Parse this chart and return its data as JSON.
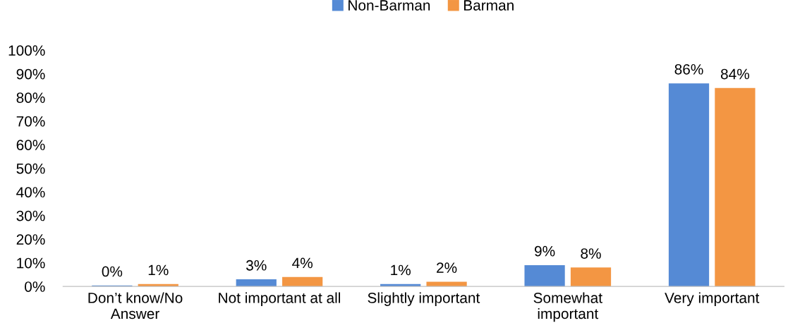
{
  "chart_data": {
    "type": "bar",
    "categories": [
      "Don’t know/No\nAnswer",
      "Not important at all",
      "Slightly important",
      "Somewhat\nimportant",
      "Very important"
    ],
    "series": [
      {
        "name": "Non-Barman",
        "color": "#558ad5",
        "values": [
          0.4,
          3,
          1,
          9,
          86
        ],
        "value_labels": [
          "0%",
          "3%",
          "1%",
          "9%",
          "86%"
        ]
      },
      {
        "name": "Barman",
        "color": "#f39643",
        "values": [
          1,
          4,
          2,
          8,
          84
        ],
        "value_labels": [
          "1%",
          "4%",
          "2%",
          "8%",
          "84%"
        ]
      }
    ],
    "ylim": [
      0,
      100
    ],
    "yticks": [
      {
        "value": 0,
        "label": "0%"
      },
      {
        "value": 10,
        "label": "10%"
      },
      {
        "value": 20,
        "label": "20%"
      },
      {
        "value": 30,
        "label": "30%"
      },
      {
        "value": 40,
        "label": "40%"
      },
      {
        "value": 50,
        "label": "50%"
      },
      {
        "value": 60,
        "label": "60%"
      },
      {
        "value": 70,
        "label": "70%"
      },
      {
        "value": 80,
        "label": "80%"
      },
      {
        "value": 90,
        "label": "90%"
      },
      {
        "value": 100,
        "label": "100%"
      }
    ],
    "grid": false,
    "legend": "top"
  }
}
